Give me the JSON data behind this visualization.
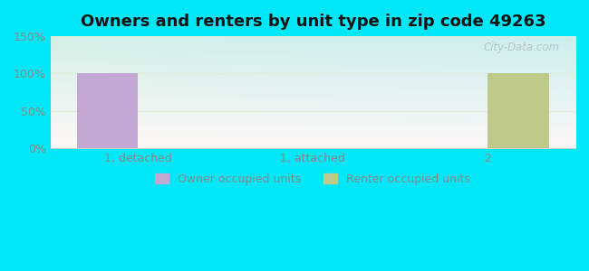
{
  "title": "Owners and renters by unit type in zip code 49263",
  "categories": [
    "1, detached",
    "1, attached",
    "2"
  ],
  "owner_values": [
    100,
    0,
    0
  ],
  "renter_values": [
    0,
    0,
    100
  ],
  "owner_color": "#c4a8d4",
  "renter_color": "#bec98a",
  "ylim": [
    0,
    150
  ],
  "yticks": [
    0,
    50,
    100,
    150
  ],
  "ytick_labels": [
    "0%",
    "50%",
    "100%",
    "150%"
  ],
  "bar_width": 0.35,
  "background_outer": "#00e8f8",
  "title_fontsize": 13,
  "legend_labels": [
    "Owner occupied units",
    "Renter occupied units"
  ],
  "watermark": "City-Data.com",
  "tick_color": "#888888",
  "grid_color": "#ddeedd",
  "spine_color": "#cccccc"
}
